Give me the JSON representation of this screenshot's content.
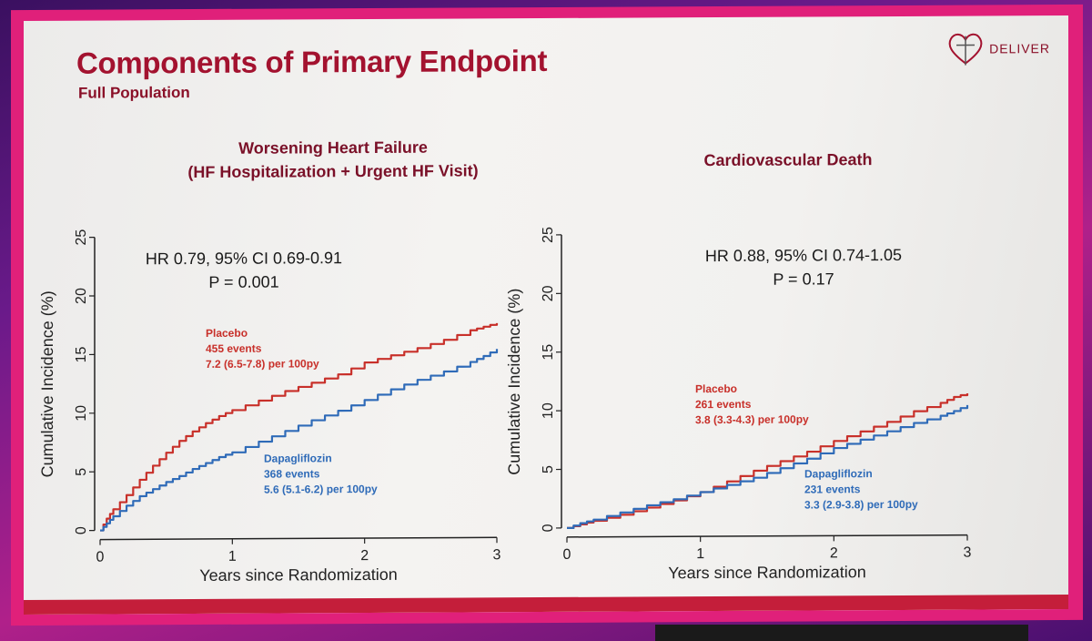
{
  "slide": {
    "title": "Components of Primary Endpoint",
    "subtitle": "Full Population",
    "logo_text": "DELIVER"
  },
  "colors": {
    "placebo": "#c8302a",
    "dapagliflozin": "#2f6bb8",
    "title": "#a3122f"
  },
  "chart_data": [
    {
      "type": "line",
      "title_line1": "Worsening Heart Failure",
      "title_line2": "(HF Hospitalization + Urgent HF Visit)",
      "stats_line1": "HR 0.79,  95% CI 0.69-0.91",
      "stats_line2": "P = 0.001",
      "xlabel": "Years since Randomization",
      "ylabel": "Cumulative Incidence (%)",
      "xlim": [
        0,
        3
      ],
      "ylim": [
        0,
        25
      ],
      "xticks": [
        "0",
        "1",
        "2",
        "3"
      ],
      "yticks": [
        "0",
        "5",
        "10",
        "15",
        "20",
        "25"
      ],
      "series": [
        {
          "name": "Placebo",
          "events": "455 events",
          "rate": "7.2 (6.5-7.8) per 100py",
          "x": [
            0,
            0.05,
            0.1,
            0.2,
            0.3,
            0.4,
            0.5,
            0.6,
            0.7,
            0.8,
            0.9,
            1.0,
            1.2,
            1.4,
            1.6,
            1.8,
            2.0,
            2.2,
            2.4,
            2.6,
            2.8,
            2.9,
            3.0
          ],
          "y": [
            0,
            1.0,
            1.8,
            3.0,
            4.3,
            5.5,
            6.6,
            7.6,
            8.4,
            9.1,
            9.7,
            10.2,
            11.0,
            11.8,
            12.5,
            13.2,
            14.2,
            14.8,
            15.4,
            16.1,
            16.9,
            17.2,
            17.5
          ]
        },
        {
          "name": "Dapagliflozin",
          "events": "368 events",
          "rate": "5.6 (5.1-6.2) per 100py",
          "x": [
            0,
            0.05,
            0.1,
            0.2,
            0.3,
            0.4,
            0.5,
            0.6,
            0.7,
            0.8,
            0.9,
            1.0,
            1.2,
            1.4,
            1.6,
            1.8,
            2.0,
            2.2,
            2.4,
            2.6,
            2.8,
            2.9,
            3.0
          ],
          "y": [
            0,
            0.6,
            1.2,
            2.1,
            2.9,
            3.5,
            4.1,
            4.6,
            5.2,
            5.7,
            6.2,
            6.6,
            7.5,
            8.4,
            9.3,
            10.1,
            11.0,
            11.9,
            12.7,
            13.4,
            14.2,
            14.7,
            15.3
          ]
        }
      ]
    },
    {
      "type": "line",
      "title_line1": "Cardiovascular Death",
      "stats_line1": "HR 0.88, 95% CI 0.74-1.05",
      "stats_line2": "P = 0.17",
      "xlabel": "Years since Randomization",
      "ylabel": "Cumulative Incidence (%)",
      "xlim": [
        0,
        3
      ],
      "ylim": [
        0,
        25
      ],
      "xticks": [
        "0",
        "1",
        "2",
        "3"
      ],
      "yticks": [
        "0",
        "5",
        "10",
        "15",
        "20",
        "25"
      ],
      "series": [
        {
          "name": "Placebo",
          "events": "261 events",
          "rate": "3.8 (3.3-4.3) per 100py",
          "x": [
            0,
            0.1,
            0.2,
            0.4,
            0.6,
            0.8,
            1.0,
            1.2,
            1.4,
            1.6,
            1.8,
            2.0,
            2.2,
            2.4,
            2.6,
            2.8,
            2.9,
            3.0
          ],
          "y": [
            0,
            0.3,
            0.6,
            1.1,
            1.7,
            2.3,
            3.0,
            3.9,
            4.8,
            5.6,
            6.4,
            7.3,
            8.1,
            8.9,
            9.8,
            10.5,
            11.0,
            11.3
          ]
        },
        {
          "name": "Dapagliflozin",
          "events": "231 events",
          "rate": "3.3 (2.9-3.8) per 100py",
          "x": [
            0,
            0.1,
            0.2,
            0.4,
            0.6,
            0.8,
            1.0,
            1.2,
            1.4,
            1.6,
            1.8,
            2.0,
            2.2,
            2.4,
            2.6,
            2.8,
            2.9,
            3.0
          ],
          "y": [
            0,
            0.4,
            0.7,
            1.3,
            1.9,
            2.4,
            3.0,
            3.6,
            4.2,
            5.0,
            5.8,
            6.7,
            7.4,
            8.1,
            8.8,
            9.4,
            9.8,
            10.3
          ]
        }
      ]
    }
  ]
}
